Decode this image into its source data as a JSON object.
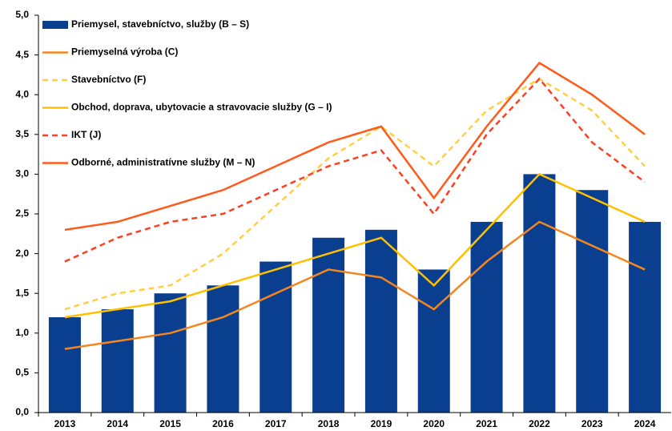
{
  "chart_data": {
    "type": "bar",
    "categories": [
      "2013",
      "2014",
      "2015",
      "2016",
      "2017",
      "2018",
      "2019",
      "2020",
      "2021",
      "2022",
      "2023",
      "2024"
    ],
    "series": [
      {
        "name": "Priemysel, stavebníctvo, služby (B – S)",
        "type": "bar",
        "color": "#0a3f8f",
        "values": [
          1.2,
          1.3,
          1.5,
          1.6,
          1.9,
          2.2,
          2.3,
          1.8,
          2.4,
          3.0,
          2.8,
          2.4
        ]
      },
      {
        "name": "Priemyselná výroba (C)",
        "type": "line",
        "dashed": false,
        "color": "#f5861f",
        "values": [
          0.8,
          0.9,
          1.0,
          1.2,
          1.5,
          1.8,
          1.7,
          1.3,
          1.9,
          2.4,
          2.1,
          1.8
        ]
      },
      {
        "name": "Stavebníctvo (F)",
        "type": "line",
        "dashed": true,
        "color": "#ffd044",
        "values": [
          1.3,
          1.5,
          1.6,
          2.0,
          2.6,
          3.2,
          3.6,
          3.1,
          3.8,
          4.2,
          3.8,
          3.1
        ]
      },
      {
        "name": "Obchod, doprava, ubytovacie a stravovacie služby (G – I)",
        "type": "line",
        "dashed": false,
        "color": "#ffc000",
        "values": [
          1.2,
          1.3,
          1.4,
          1.6,
          1.8,
          2.0,
          2.2,
          1.6,
          2.3,
          3.0,
          2.7,
          2.4
        ]
      },
      {
        "name": "IKT (J)",
        "type": "line",
        "dashed": true,
        "color": "#ff4020",
        "values": [
          1.9,
          2.2,
          2.4,
          2.5,
          2.8,
          3.1,
          3.3,
          2.5,
          3.5,
          4.2,
          3.4,
          2.9
        ]
      },
      {
        "name": "Odborné, administratívne služby (M – N)",
        "type": "line",
        "dashed": false,
        "color": "#ff5a1a",
        "values": [
          2.3,
          2.4,
          2.6,
          2.8,
          3.1,
          3.4,
          3.6,
          2.7,
          3.6,
          4.4,
          4.0,
          3.5
        ]
      }
    ],
    "ylim": [
      0,
      5
    ],
    "yticks": [
      {
        "value": 0,
        "label": "0,0"
      },
      {
        "value": 0.5,
        "label": "0,5"
      },
      {
        "value": 1,
        "label": "1,0"
      },
      {
        "value": 1.5,
        "label": "1,5"
      },
      {
        "value": 2,
        "label": "2,0"
      },
      {
        "value": 2.5,
        "label": "2,5"
      },
      {
        "value": 3,
        "label": "3,0"
      },
      {
        "value": 3.5,
        "label": "3,5"
      },
      {
        "value": 4,
        "label": "4,0"
      },
      {
        "value": 4.5,
        "label": "4,5"
      },
      {
        "value": 5,
        "label": "5,0"
      }
    ],
    "grid": false,
    "legend": "upper left"
  }
}
